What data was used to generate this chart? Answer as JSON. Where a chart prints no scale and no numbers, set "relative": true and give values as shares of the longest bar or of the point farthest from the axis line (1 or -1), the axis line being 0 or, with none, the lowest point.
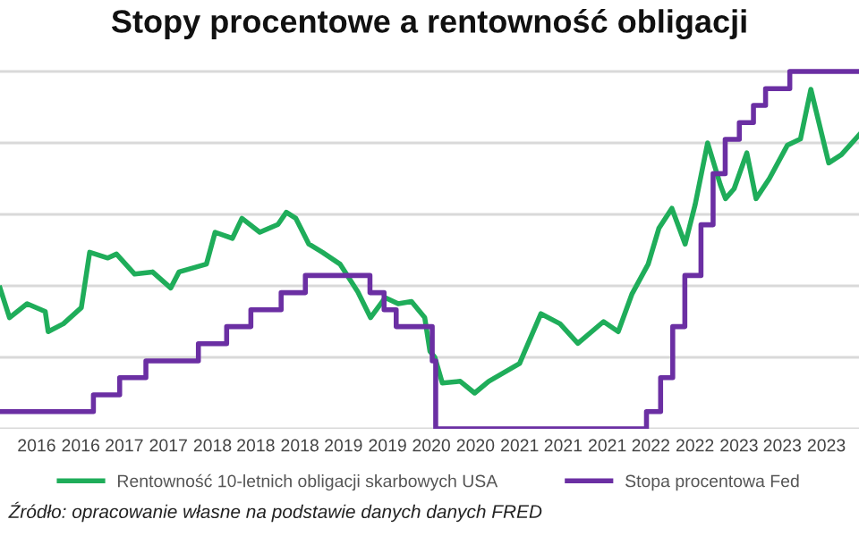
{
  "chart_data": {
    "type": "line",
    "title": "Stopy procentowe a rentowność obligacji",
    "relative": true,
    "xlim": [
      "2016-01-26",
      "2024-03-23"
    ],
    "xticks": [
      {
        "value": "2016-06",
        "label": "2016"
      },
      {
        "value": "2016-11",
        "label": "2016"
      },
      {
        "value": "2017-04",
        "label": "2017"
      },
      {
        "value": "2017-09",
        "label": "2017"
      },
      {
        "value": "2018-02",
        "label": "2018"
      },
      {
        "value": "2018-07",
        "label": "2018"
      },
      {
        "value": "2018-12",
        "label": "2018"
      },
      {
        "value": "2019-05",
        "label": "2019"
      },
      {
        "value": "2019-10",
        "label": "2019"
      },
      {
        "value": "2020-03",
        "label": "2020"
      },
      {
        "value": "2020-08",
        "label": "2020"
      },
      {
        "value": "2021-01",
        "label": "2021"
      },
      {
        "value": "2021-06",
        "label": "2021"
      },
      {
        "value": "2021-11",
        "label": "2021"
      },
      {
        "value": "2022-04",
        "label": "2022"
      },
      {
        "value": "2022-09",
        "label": "2022"
      },
      {
        "value": "2023-02",
        "label": "2023"
      },
      {
        "value": "2023-07",
        "label": "2023"
      },
      {
        "value": "2023-12",
        "label": "2023"
      }
    ],
    "grid": "y",
    "legend": "bottom",
    "marker": "none",
    "line_style": "solid",
    "series": [
      {
        "name": "Rentowność 10-letnich obligacji skarbowych USA",
        "color": "#1fad5a",
        "x": [
          "2016-01-26",
          "2016-02-28",
          "2016-04-29",
          "2016-07-01",
          "2016-07-11",
          "2016-09-02",
          "2016-11-03",
          "2016-12-02",
          "2017-02-03",
          "2017-03-05",
          "2017-05-07",
          "2017-07-08",
          "2017-09-09",
          "2017-10-08",
          "2018-01-11",
          "2018-02-10",
          "2018-04-11",
          "2018-05-14",
          "2018-07-15",
          "2018-09-16",
          "2018-10-15",
          "2018-11-17",
          "2019-01-01",
          "2019-02-17",
          "2019-04-19",
          "2019-06-20",
          "2019-08-03",
          "2019-09-23",
          "2019-11-07",
          "2019-12-23",
          "2020-02-07",
          "2020-02-25",
          "2020-03-13",
          "2020-04-08",
          "2020-06-09",
          "2020-07-29",
          "2020-09-16",
          "2021-01-01",
          "2021-01-19",
          "2021-03-16",
          "2021-05-21",
          "2021-07-22",
          "2021-10-19",
          "2021-12-09",
          "2022-01-26",
          "2022-03-23",
          "2022-04-29",
          "2022-06-13",
          "2022-07-29",
          "2022-09-02",
          "2022-10-15",
          "2022-11-28",
          "2022-12-16",
          "2023-01-15",
          "2023-02-28",
          "2023-04-01",
          "2023-05-17",
          "2023-07-19",
          "2023-09-02",
          "2023-10-08",
          "2023-12-09",
          "2024-01-22",
          "2024-03-23"
        ],
        "values": [
          0.394,
          0.311,
          0.35,
          0.328,
          0.272,
          0.294,
          0.339,
          0.494,
          0.478,
          0.489,
          0.433,
          0.439,
          0.394,
          0.439,
          0.461,
          0.55,
          0.533,
          0.589,
          0.55,
          0.572,
          0.606,
          0.589,
          0.517,
          0.494,
          0.461,
          0.383,
          0.311,
          0.367,
          0.35,
          0.356,
          0.311,
          0.217,
          0.2,
          0.128,
          0.133,
          0.1,
          0.133,
          0.183,
          0.217,
          0.322,
          0.294,
          0.239,
          0.3,
          0.272,
          0.378,
          0.461,
          0.561,
          0.617,
          0.517,
          0.628,
          0.8,
          0.683,
          0.644,
          0.672,
          0.772,
          0.644,
          0.7,
          0.794,
          0.811,
          0.95,
          0.744,
          0.767,
          0.822
        ]
      },
      {
        "name": "Stopa procentowa Fed",
        "color": "#6b2fa3",
        "type": "step",
        "x": [
          "2016-01-26",
          "2016-12-15",
          "2017-03-16",
          "2017-06-15",
          "2017-12-14",
          "2018-03-22",
          "2018-06-14",
          "2018-09-27",
          "2018-12-20",
          "2019-08-01",
          "2019-09-19",
          "2019-10-31",
          "2020-03-04",
          "2020-03-16",
          "2022-03-17",
          "2022-05-05",
          "2022-06-16",
          "2022-07-28",
          "2022-09-22",
          "2022-11-03",
          "2022-12-15",
          "2023-02-02",
          "2023-03-23",
          "2023-05-04",
          "2023-07-27",
          "2024-03-23"
        ],
        "values": [
          0.048,
          0.095,
          0.143,
          0.19,
          0.238,
          0.286,
          0.333,
          0.381,
          0.429,
          0.381,
          0.333,
          0.286,
          0.19,
          0.0,
          0.048,
          0.143,
          0.286,
          0.429,
          0.571,
          0.714,
          0.81,
          0.857,
          0.905,
          0.952,
          1.0,
          1.0
        ]
      }
    ],
    "annotations": [
      "Źródło: opracowanie własne na podstawie danych danych FRED"
    ]
  }
}
